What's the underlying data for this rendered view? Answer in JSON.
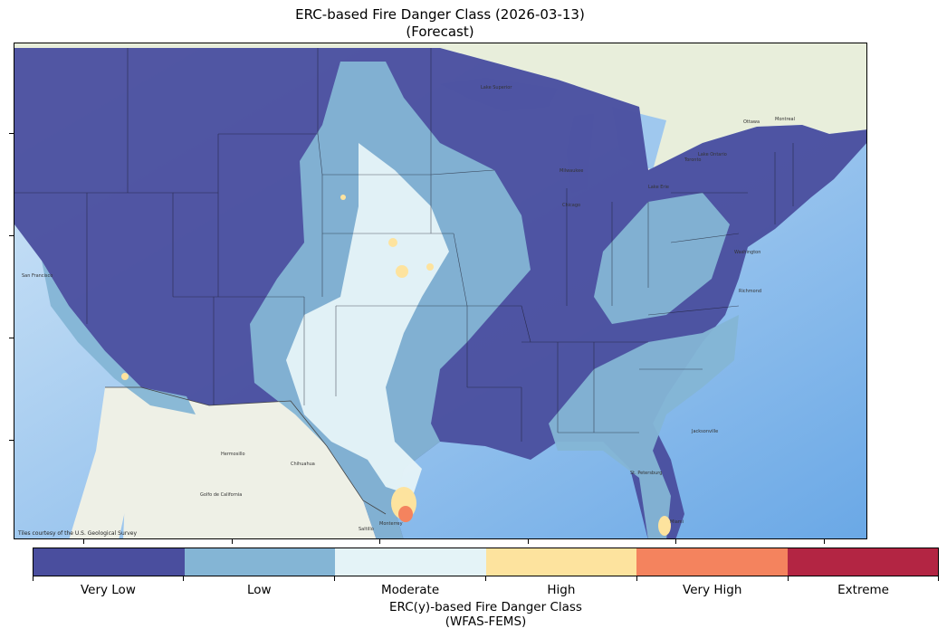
{
  "title": {
    "line1": "ERC-based Fire Danger Class (2026-03-13)",
    "line2": "(Forecast)"
  },
  "map": {
    "attribution": "Tiles courtesy of the U.S. Geological Survey",
    "basemap_labels": [
      "San Francisco",
      "Hermosillo",
      "Chihuahua",
      "Monterrey",
      "Saltillo",
      "Golfo de California",
      "Milwaukee",
      "Chicago",
      "Ottawa",
      "Montreal",
      "Toronto",
      "Lake Superior",
      "Lake Ontario",
      "Lake Erie",
      "Washington",
      "Richmond",
      "Jacksonville",
      "St. Petersburg",
      "Miami"
    ]
  },
  "colorbar": {
    "classes": [
      {
        "label": "Very Low",
        "color": "#4a4e9e"
      },
      {
        "label": "Low",
        "color": "#84b5d5"
      },
      {
        "label": "Moderate",
        "color": "#e4f3f7"
      },
      {
        "label": "High",
        "color": "#fde39e"
      },
      {
        "label": "Very High",
        "color": "#f4835e"
      },
      {
        "label": "Extreme",
        "color": "#b32543"
      }
    ],
    "title_line1": "ERC(y)-based Fire Danger Class",
    "title_line2": "(WFAS-FEMS)"
  }
}
